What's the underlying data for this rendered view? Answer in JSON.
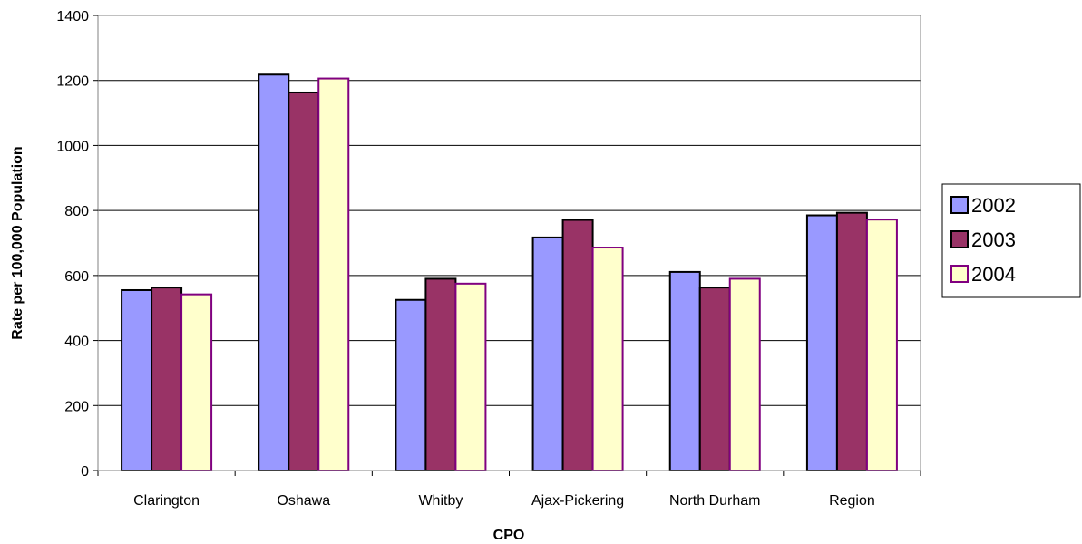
{
  "chart_data": {
    "type": "bar",
    "title": "",
    "xlabel": "CPO",
    "ylabel": "Rate per 100,000 Population",
    "categories": [
      "Clarington",
      "Oshawa",
      "Whitby",
      "Ajax-Pickering",
      "North Durham",
      "Region"
    ],
    "series": [
      {
        "name": "2002",
        "values": [
          555,
          1218,
          525,
          717,
          611,
          785
        ],
        "fill": "#9999ff",
        "stroke": "#000000"
      },
      {
        "name": "2003",
        "values": [
          563,
          1163,
          590,
          771,
          563,
          793
        ],
        "fill": "#993366",
        "stroke": "#000000"
      },
      {
        "name": "2004",
        "values": [
          542,
          1206,
          575,
          686,
          590,
          772
        ],
        "fill": "#ffffcc",
        "stroke": "#800080"
      }
    ],
    "ylim": [
      0,
      1400
    ],
    "yticks": [
      0,
      200,
      400,
      600,
      800,
      1000,
      1200,
      1400
    ],
    "grid": true,
    "legend_position": "right"
  }
}
